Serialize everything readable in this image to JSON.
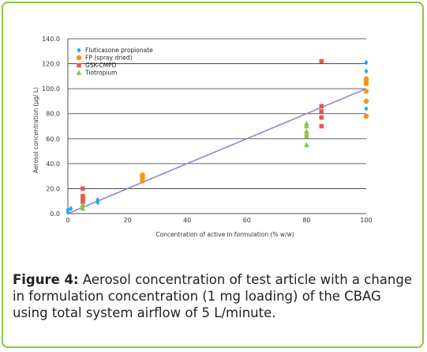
{
  "chart_data": {
    "type": "scatter",
    "xlabel": "Concentration of active in formulation (% w/w)",
    "ylabel": "Aerosol concentration (µg/ L)",
    "xlim": [
      0,
      100
    ],
    "ylim": [
      0,
      140
    ],
    "xticks": [
      "0",
      "20",
      "40",
      "60",
      "80",
      "100"
    ],
    "yticks": [
      "0.0",
      "20.0",
      "40.0",
      "60.0",
      "80.0",
      "100.0",
      "120.0",
      "140.0"
    ],
    "grid": "horizontal",
    "legend_position": "top-left",
    "series": [
      {
        "name": "Fluticasone propionate",
        "marker": "diamond",
        "color": "#27aae1",
        "points": [
          [
            0,
            1
          ],
          [
            0,
            3
          ],
          [
            1,
            4
          ],
          [
            5,
            6
          ],
          [
            5,
            8
          ],
          [
            10,
            9
          ],
          [
            10,
            11
          ],
          [
            100,
            84
          ],
          [
            100,
            90
          ],
          [
            100,
            114
          ],
          [
            100,
            121
          ]
        ]
      },
      {
        "name": "FP (spray dried)",
        "marker": "circle",
        "color": "#f7941d",
        "points": [
          [
            25,
            26
          ],
          [
            25,
            28
          ],
          [
            25,
            30
          ],
          [
            25,
            31
          ],
          [
            100,
            78
          ],
          [
            100,
            90
          ],
          [
            100,
            98
          ],
          [
            100,
            104
          ],
          [
            100,
            106
          ],
          [
            100,
            108
          ]
        ]
      },
      {
        "name": "GSK-CMPD",
        "marker": "square",
        "color": "#e8594e",
        "points": [
          [
            5,
            10
          ],
          [
            5,
            12
          ],
          [
            5,
            14
          ],
          [
            5,
            20
          ],
          [
            85,
            70
          ],
          [
            85,
            77
          ],
          [
            85,
            82
          ],
          [
            85,
            86
          ],
          [
            85,
            122
          ]
        ]
      },
      {
        "name": "Tiotropium",
        "marker": "triangle",
        "color": "#8cc63f",
        "points": [
          [
            5,
            4
          ],
          [
            5,
            7
          ],
          [
            80,
            55
          ],
          [
            80,
            62
          ],
          [
            80,
            64
          ],
          [
            80,
            66
          ],
          [
            80,
            70
          ],
          [
            80,
            72
          ]
        ]
      }
    ],
    "trendline": {
      "color": "#8b8bd0",
      "from": [
        0,
        0
      ],
      "to": [
        100,
        100
      ]
    }
  },
  "caption": {
    "label": "Figure 4:",
    "text": " Aerosol concentration of test article with a change in formulation concentration (1 mg loading) of the CBAG using total system airflow of 5 L/minute."
  }
}
